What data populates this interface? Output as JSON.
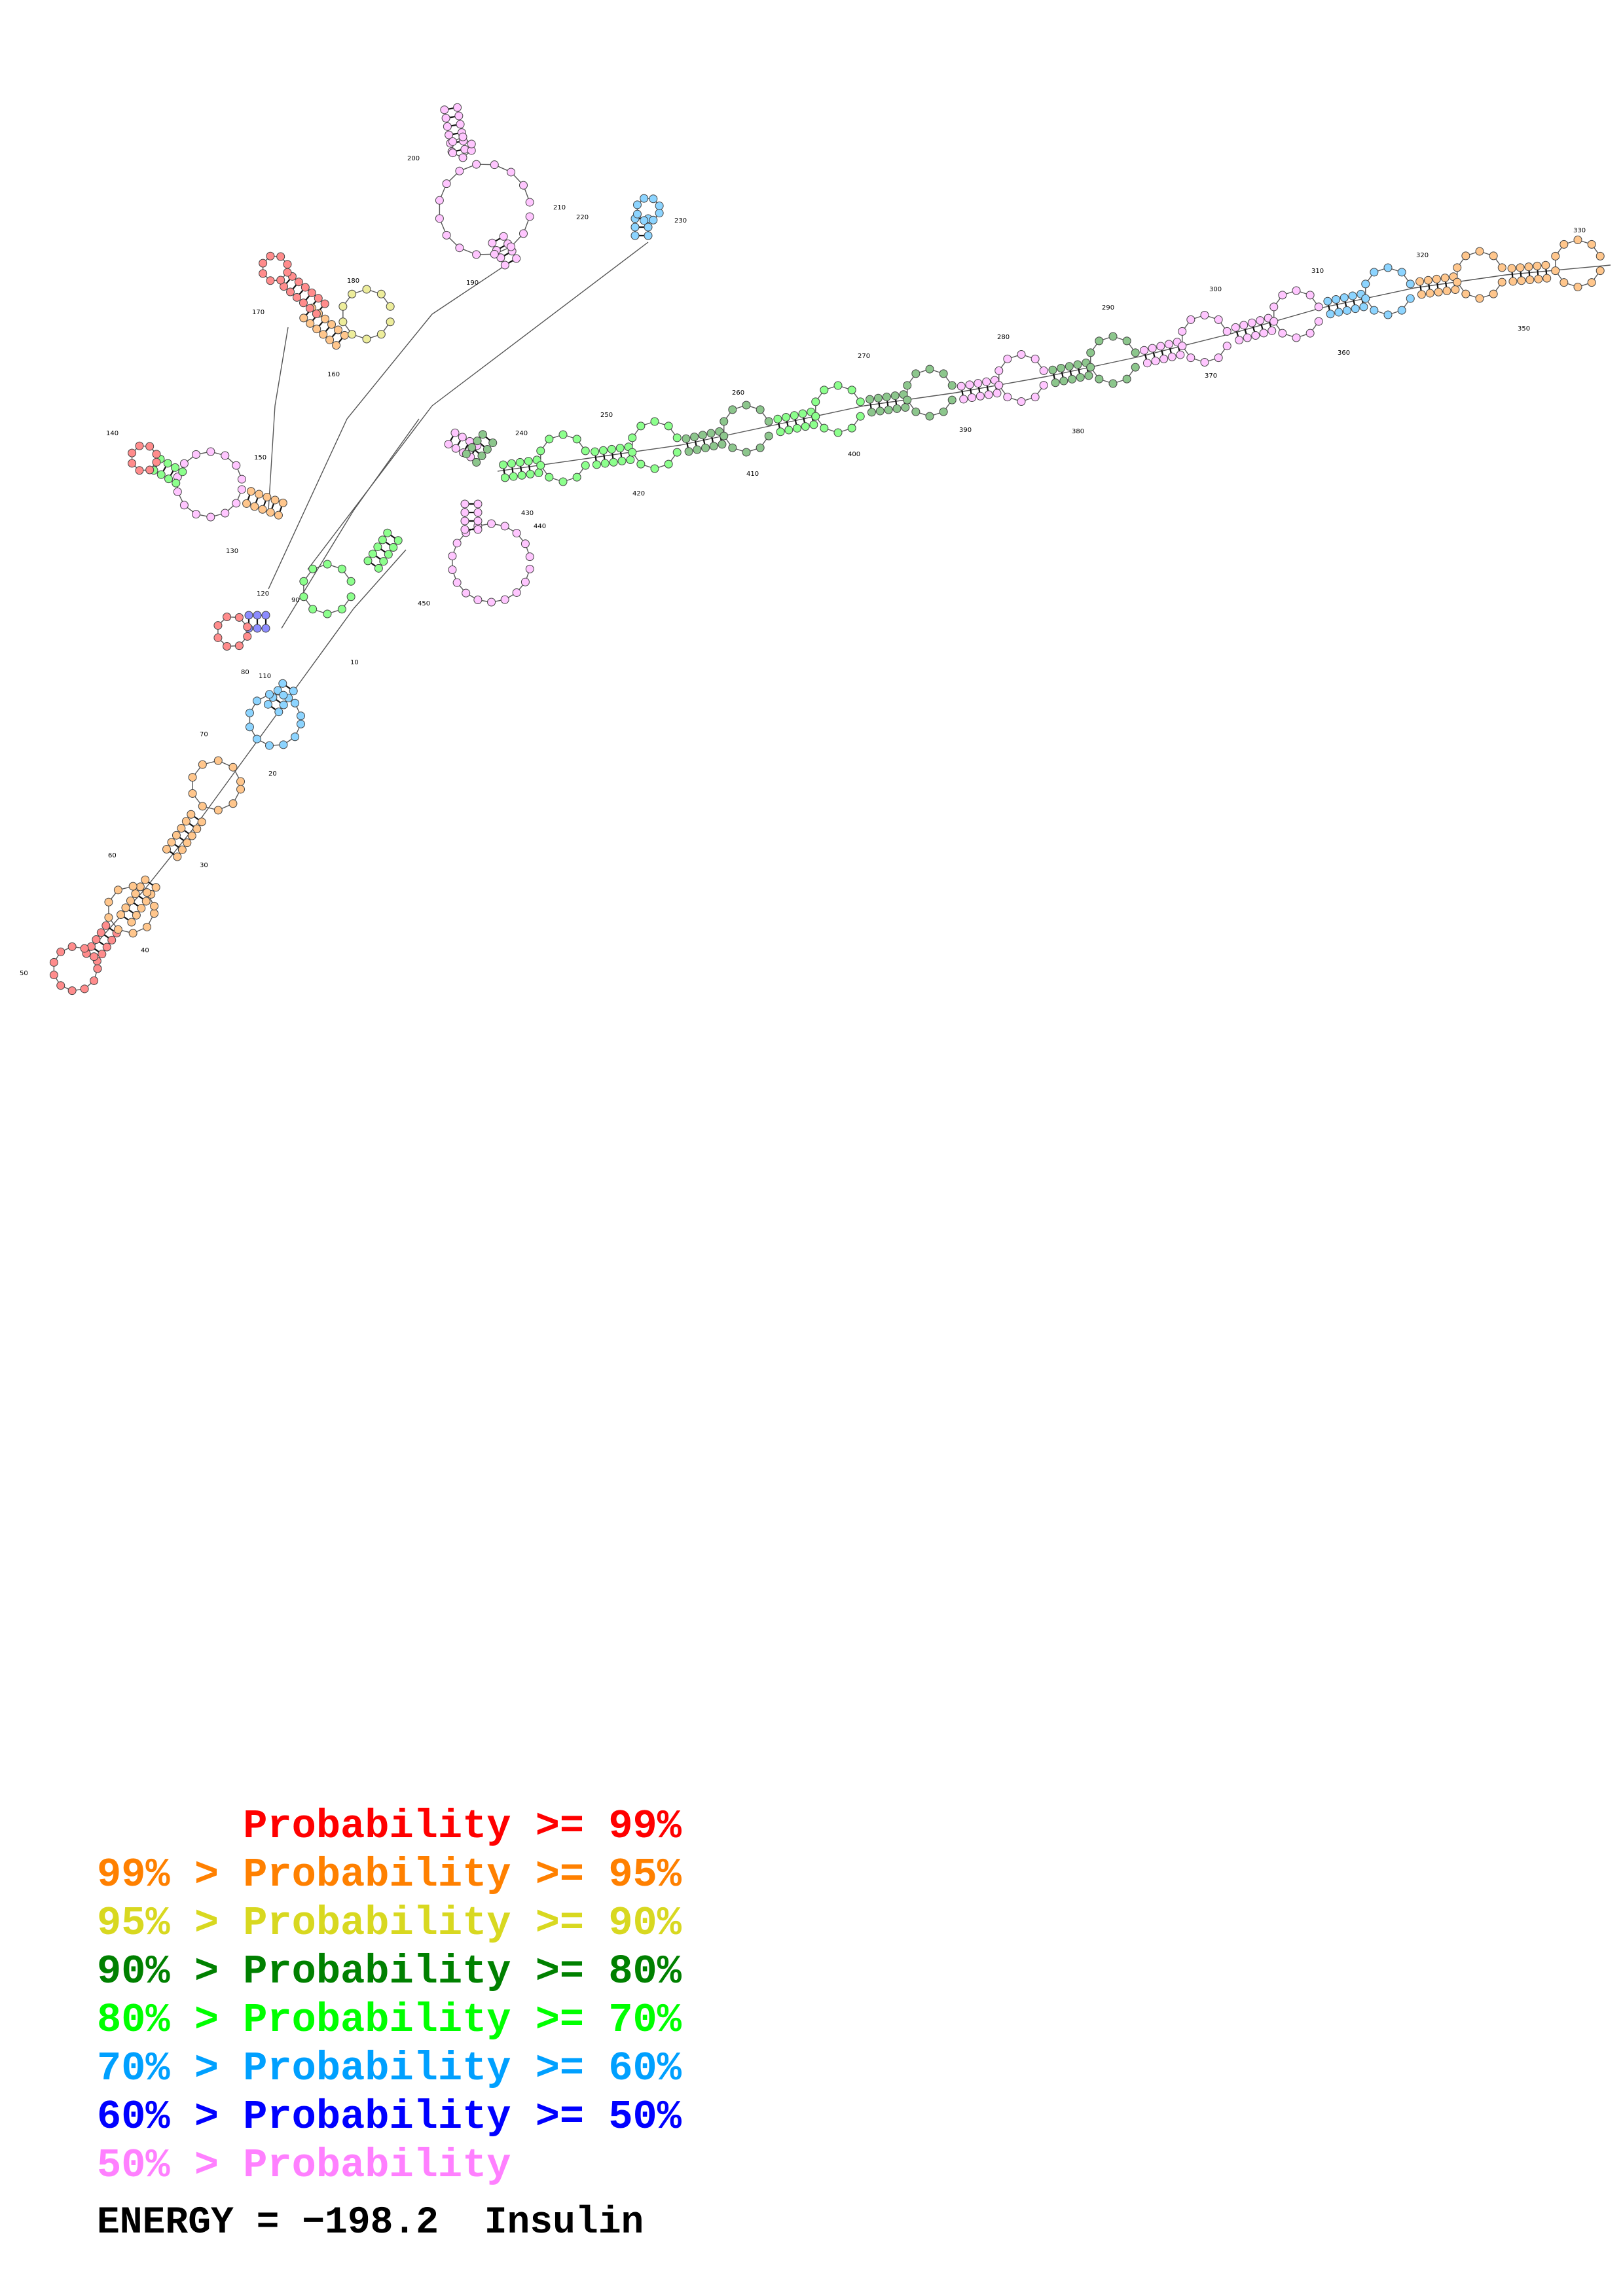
{
  "diagram": {
    "type": "rna-secondary-structure",
    "position_labels": [
      "10",
      "20",
      "30",
      "40",
      "50",
      "60",
      "70",
      "80",
      "90",
      "110",
      "120",
      "130",
      "140",
      "150",
      "160",
      "170",
      "180",
      "190",
      "200",
      "210",
      "220",
      "230",
      "240",
      "250",
      "260",
      "270",
      "280",
      "290",
      "300",
      "310",
      "320",
      "330",
      "350",
      "360",
      "370",
      "380",
      "390",
      "400",
      "410",
      "420",
      "430",
      "440",
      "450"
    ],
    "colors": {
      "p99": "#ff0000",
      "p95": "#ff8000",
      "p90": "#d8d820",
      "p80": "#008000",
      "p70": "#00ff00",
      "p60": "#00a0ff",
      "p50": "#0000ff",
      "plt50": "#ff80ff",
      "backbone": "#555555"
    }
  },
  "legend": {
    "lines": [
      {
        "text": "      Probability >= 99%",
        "color": "#ff0000"
      },
      {
        "text": "99% > Probability >= 95%",
        "color": "#ff8000"
      },
      {
        "text": "95% > Probability >= 90%",
        "color": "#d8d820"
      },
      {
        "text": "90% > Probability >= 80%",
        "color": "#008000"
      },
      {
        "text": "80% > Probability >= 70%",
        "color": "#00ff00"
      },
      {
        "text": "70% > Probability >= 60%",
        "color": "#00a0ff"
      },
      {
        "text": "60% > Probability >= 50%",
        "color": "#0000ff"
      },
      {
        "text": "50% > Probability",
        "color": "#ff80ff"
      }
    ],
    "energy": "ENERGY = −198.2  Insulin"
  }
}
